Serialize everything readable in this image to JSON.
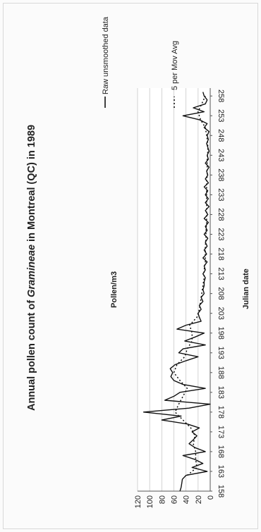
{
  "chart_data": {
    "type": "line",
    "title_prefix": "Annual pollen count of ",
    "title_italic": "Gramineae",
    "title_suffix": " in Montreal (QC) in 1989",
    "xlabel": "Julian date",
    "ylabel": "Pollen/m3",
    "xlim": [
      158,
      260
    ],
    "ylim": [
      0,
      120
    ],
    "y_ticks": [
      0,
      20,
      40,
      60,
      80,
      100,
      120
    ],
    "x_ticks": [
      158,
      163,
      168,
      173,
      178,
      183,
      188,
      193,
      198,
      203,
      208,
      213,
      218,
      223,
      228,
      233,
      238,
      243,
      248,
      253,
      258
    ],
    "grid": "horizontal",
    "legend_position": "right",
    "series": [
      {
        "name": "Raw unsmoothed data",
        "style": "solid",
        "x": [
          158,
          159,
          160,
          161,
          162,
          163,
          164,
          165,
          166,
          167,
          168,
          169,
          170,
          171,
          172,
          173,
          174,
          175,
          176,
          177,
          178,
          179,
          180,
          181,
          182,
          183,
          184,
          185,
          186,
          187,
          188,
          189,
          190,
          191,
          192,
          193,
          194,
          195,
          196,
          197,
          198,
          199,
          200,
          201,
          202,
          203,
          204,
          205,
          206,
          207,
          208,
          209,
          210,
          211,
          212,
          213,
          214,
          215,
          216,
          217,
          218,
          219,
          220,
          221,
          222,
          223,
          224,
          225,
          226,
          227,
          228,
          229,
          230,
          231,
          232,
          233,
          234,
          235,
          236,
          237,
          238,
          239,
          240,
          241,
          242,
          243,
          244,
          245,
          246,
          247,
          248,
          249,
          250,
          251,
          252,
          253,
          254,
          255,
          256,
          257,
          258,
          259
        ],
        "y": [
          50,
          48,
          47,
          46,
          40,
          5,
          30,
          12,
          25,
          45,
          8,
          25,
          35,
          28,
          22,
          30,
          18,
          38,
          80,
          48,
          110,
          35,
          0,
          75,
          60,
          50,
          8,
          45,
          60,
          65,
          62,
          66,
          58,
          40,
          20,
          52,
          45,
          8,
          42,
          25,
          10,
          55,
          40,
          15,
          18,
          20,
          15,
          18,
          12,
          15,
          10,
          12,
          10,
          10,
          8,
          12,
          8,
          10,
          5,
          12,
          6,
          10,
          5,
          8,
          4,
          10,
          5,
          8,
          3,
          10,
          4,
          8,
          2,
          8,
          3,
          8,
          4,
          10,
          3,
          8,
          4,
          6,
          2,
          8,
          3,
          5,
          2,
          4,
          6,
          3,
          5,
          2,
          10,
          5,
          18,
          45,
          10,
          28,
          8,
          5,
          10,
          12
        ]
      },
      {
        "name": "5 per Mov Avg",
        "style": "dotted",
        "x": [
          162,
          164,
          166,
          168,
          170,
          172,
          174,
          176,
          178,
          180,
          182,
          184,
          186,
          188,
          190,
          192,
          194,
          196,
          198,
          200,
          202,
          204,
          206,
          208,
          210,
          212,
          214,
          216,
          218,
          220,
          222,
          224,
          226,
          228,
          230,
          232,
          234,
          236,
          238,
          240,
          242,
          244,
          246,
          248,
          250,
          252,
          254,
          256,
          258
        ],
        "y": [
          38,
          22,
          24,
          24,
          28,
          25,
          32,
          45,
          58,
          52,
          45,
          38,
          50,
          60,
          55,
          42,
          38,
          30,
          30,
          34,
          22,
          18,
          16,
          14,
          12,
          10,
          10,
          8,
          8,
          8,
          7,
          7,
          6,
          6,
          6,
          6,
          6,
          6,
          5,
          5,
          5,
          4,
          4,
          6,
          8,
          16,
          20,
          14,
          8
        ]
      }
    ]
  }
}
